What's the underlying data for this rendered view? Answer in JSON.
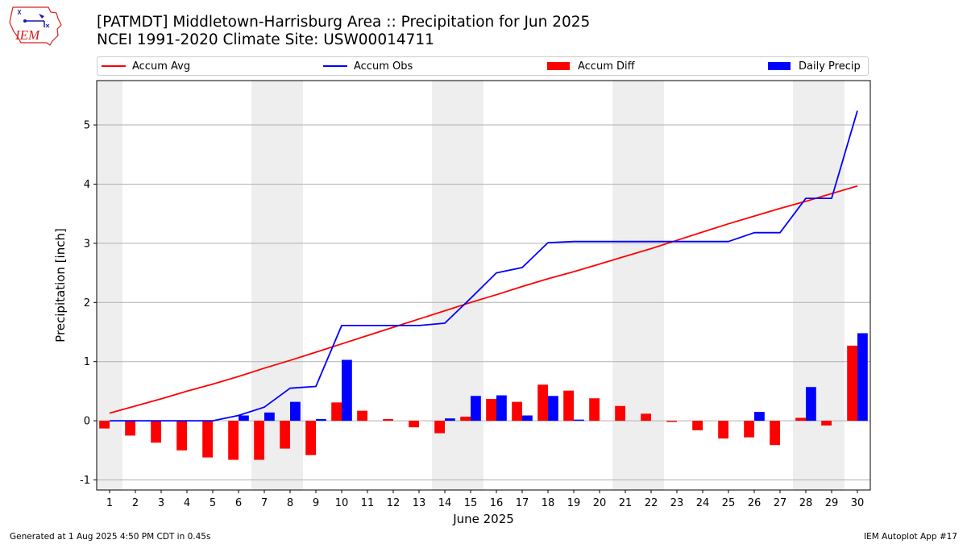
{
  "header": {
    "title_line1": "[PATMDT] Middletown-Harrisburg Area :: Precipitation for Jun 2025",
    "title_line2": "NCEI 1991-2020 Climate Site: USW00014711"
  },
  "logo": {
    "text": "IEM"
  },
  "footer": {
    "generated": "Generated at 1 Aug 2025 4:50 PM CDT in 0.45s",
    "app": "IEM Autoplot App #17"
  },
  "colors": {
    "avg": "#ff0000",
    "obs": "#0000ff",
    "diff": "#ff0000",
    "daily": "#0000ff",
    "weekend": "#eeeeee",
    "grid": "#b0b0b0"
  },
  "chart_data": {
    "type": "bar",
    "xlabel": "June 2025",
    "ylabel": "Precipitation [inch]",
    "xlim": [
      0.5,
      30.5
    ],
    "ylim": [
      -1.17,
      5.75
    ],
    "yticks": [
      -1,
      0,
      1,
      2,
      3,
      4,
      5
    ],
    "grid": "horizontal",
    "legend_placement": "top",
    "x": [
      1,
      2,
      3,
      4,
      5,
      6,
      7,
      8,
      9,
      10,
      11,
      12,
      13,
      14,
      15,
      16,
      17,
      18,
      19,
      20,
      21,
      22,
      23,
      24,
      25,
      26,
      27,
      28,
      29,
      30
    ],
    "shaded_days": [
      1,
      7,
      8,
      14,
      15,
      21,
      22,
      28,
      29
    ],
    "series": [
      {
        "name": "Accum Avg",
        "kind": "line",
        "color": "#ff0000",
        "values": [
          0.13,
          0.25,
          0.37,
          0.5,
          0.62,
          0.75,
          0.89,
          1.02,
          1.16,
          1.3,
          1.44,
          1.58,
          1.72,
          1.86,
          2.0,
          2.13,
          2.27,
          2.4,
          2.52,
          2.65,
          2.78,
          2.91,
          3.05,
          3.19,
          3.33,
          3.46,
          3.59,
          3.71,
          3.84,
          3.97
        ]
      },
      {
        "name": "Accum Obs",
        "kind": "line",
        "color": "#0000ff",
        "values": [
          0,
          0,
          0,
          0,
          0,
          0.09,
          0.23,
          0.55,
          0.58,
          1.61,
          1.61,
          1.61,
          1.61,
          1.65,
          2.07,
          2.5,
          2.59,
          3.01,
          3.03,
          3.03,
          3.03,
          3.03,
          3.03,
          3.03,
          3.03,
          3.18,
          3.18,
          3.76,
          3.76,
          5.24
        ]
      },
      {
        "name": "Accum Diff",
        "kind": "bar",
        "color": "#ff0000",
        "values": [
          -0.13,
          -0.25,
          -0.37,
          -0.5,
          -0.62,
          -0.66,
          -0.66,
          -0.47,
          -0.58,
          0.31,
          0.17,
          0.03,
          -0.11,
          -0.21,
          0.07,
          0.37,
          0.32,
          0.61,
          0.51,
          0.38,
          0.25,
          0.12,
          -0.02,
          -0.16,
          -0.3,
          -0.28,
          -0.41,
          0.05,
          -0.08,
          1.27
        ]
      },
      {
        "name": "Daily Precip",
        "kind": "bar",
        "color": "#0000ff",
        "values": [
          0,
          0,
          0,
          0,
          0,
          0.09,
          0.14,
          0.32,
          0.03,
          1.03,
          0,
          0,
          0,
          0.04,
          0.42,
          0.43,
          0.09,
          0.42,
          0.02,
          0,
          0,
          0,
          0,
          0,
          0,
          0.15,
          0,
          0.57,
          0,
          1.48
        ]
      }
    ]
  }
}
